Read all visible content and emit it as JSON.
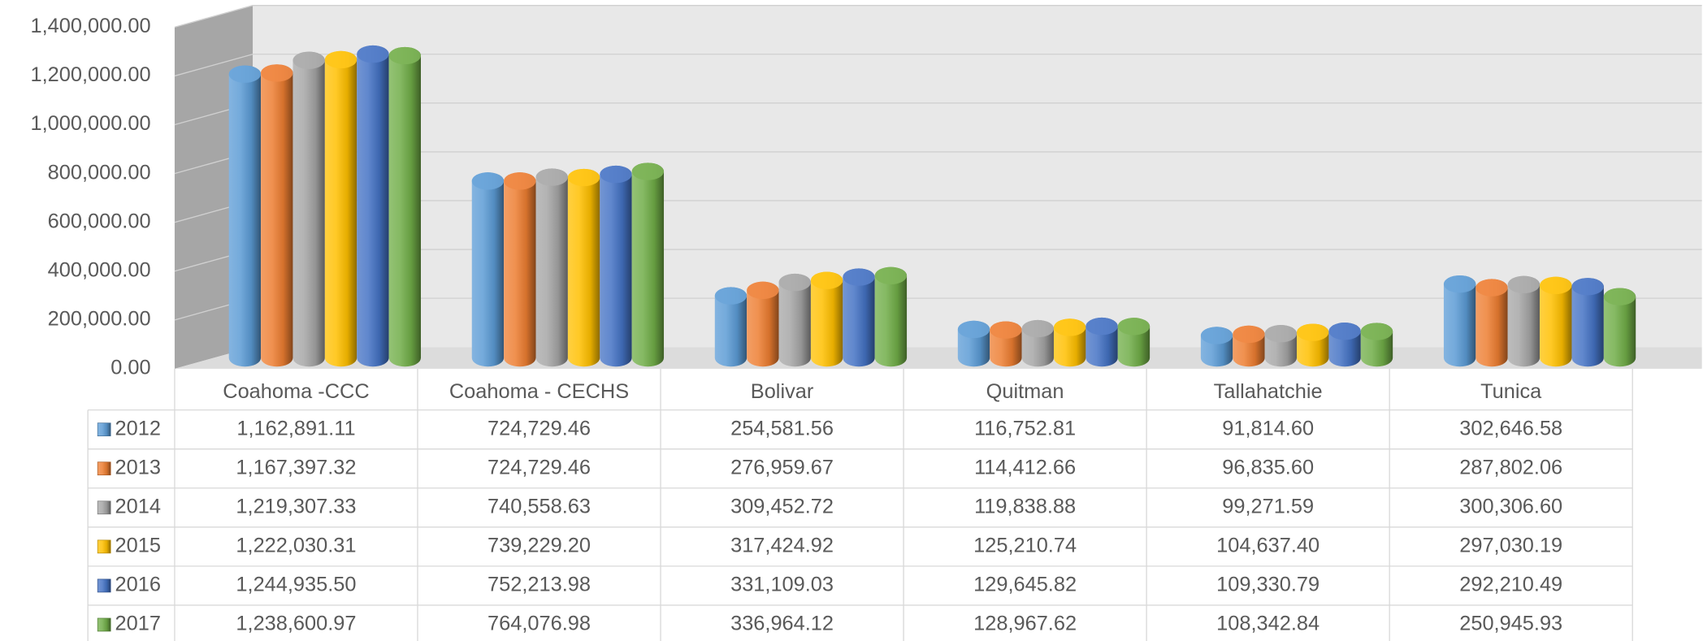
{
  "chart_data": {
    "type": "bar",
    "categories": [
      "Coahoma -CCC",
      "Coahoma - CECHS",
      "Bolivar",
      "Quitman",
      "Tallahatchie",
      "Tunica"
    ],
    "series": [
      {
        "name": "2012",
        "color": "#5b9bd5",
        "values": [
          1162891.11,
          724729.46,
          254581.56,
          116752.81,
          91814.6,
          302646.58
        ],
        "value_labels": [
          "1,162,891.11",
          "724,729.46",
          "254,581.56",
          "116,752.81",
          "91,814.60",
          "302,646.58"
        ]
      },
      {
        "name": "2013",
        "color": "#ed7d31",
        "values": [
          1167397.32,
          724729.46,
          276959.67,
          114412.66,
          96835.6,
          287802.06
        ],
        "value_labels": [
          "1,167,397.32",
          "724,729.46",
          "276,959.67",
          "114,412.66",
          "96,835.60",
          "287,802.06"
        ]
      },
      {
        "name": "2014",
        "color": "#a5a5a5",
        "values": [
          1219307.33,
          740558.63,
          309452.72,
          119838.88,
          99271.59,
          300306.6
        ],
        "value_labels": [
          "1,219,307.33",
          "740,558.63",
          "309,452.72",
          "119,838.88",
          "99,271.59",
          "300,306.60"
        ]
      },
      {
        "name": "2015",
        "color": "#ffc000",
        "values": [
          1222030.31,
          739229.2,
          317424.92,
          125210.74,
          104637.4,
          297030.19
        ],
        "value_labels": [
          "1,222,030.31",
          "739,229.20",
          "317,424.92",
          "125,210.74",
          "104,637.40",
          "297,030.19"
        ]
      },
      {
        "name": "2016",
        "color": "#4472c4",
        "values": [
          1244935.5,
          752213.98,
          331109.03,
          129645.82,
          109330.79,
          292210.49
        ],
        "value_labels": [
          "1,244,935.50",
          "752,213.98",
          "331,109.03",
          "129,645.82",
          "109,330.79",
          "292,210.49"
        ]
      },
      {
        "name": "2017",
        "color": "#70ad47",
        "values": [
          1238600.97,
          764076.98,
          336964.12,
          128967.62,
          108342.84,
          250945.93
        ],
        "value_labels": [
          "1,238,600.97",
          "764,076.98",
          "336,964.12",
          "128,967.62",
          "108,342.84",
          "250,945.93"
        ]
      }
    ],
    "ylim": [
      0,
      1400000
    ],
    "yticks": [
      {
        "value": 0,
        "label": "0.00"
      },
      {
        "value": 200000,
        "label": "200,000.00"
      },
      {
        "value": 400000,
        "label": "400,000.00"
      },
      {
        "value": 600000,
        "label": "600,000.00"
      },
      {
        "value": 800000,
        "label": "800,000.00"
      },
      {
        "value": 1000000,
        "label": "1,000,000.00"
      },
      {
        "value": 1200000,
        "label": "1,200,000.00"
      },
      {
        "value": 1400000,
        "label": "1,400,000.00"
      }
    ],
    "grid": true
  }
}
